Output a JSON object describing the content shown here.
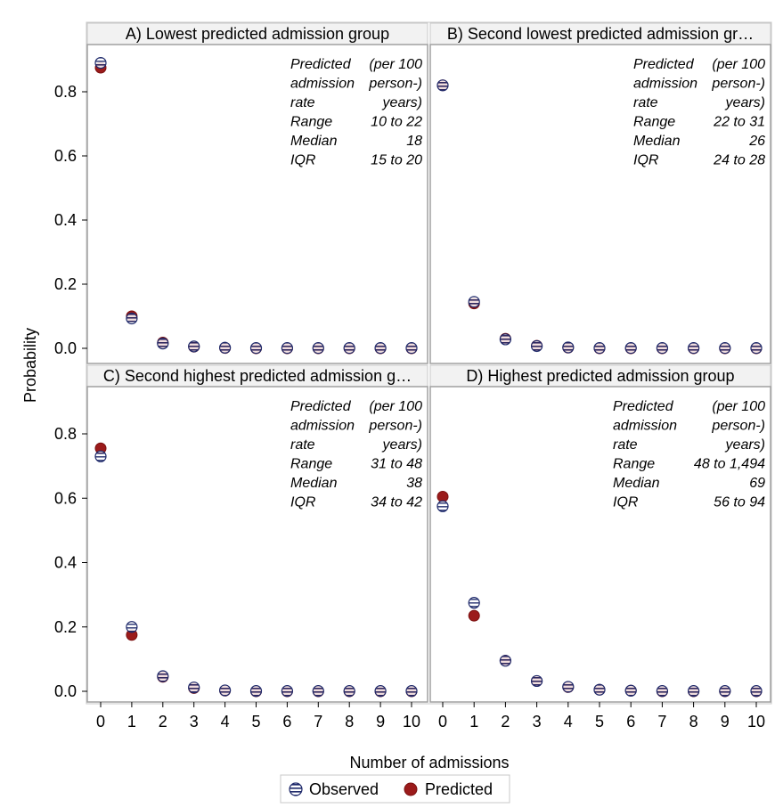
{
  "chart_data": {
    "type": "scatter",
    "xlabel": "Number of admissions",
    "ylabel": "Probability",
    "x_ticks": [
      "0",
      "1",
      "2",
      "3",
      "4",
      "5",
      "6",
      "7",
      "8",
      "9",
      "10"
    ],
    "y_ticks": [
      "0.0",
      "0.2",
      "0.4",
      "0.6",
      "0.8"
    ],
    "xlim": [
      0,
      10
    ],
    "ylim": [
      0,
      0.9
    ],
    "legend": [
      {
        "name": "Observed",
        "marker": "open-circle-striped",
        "color": "#1f2a6b"
      },
      {
        "name": "Predicted",
        "marker": "filled-circle",
        "color": "#9b1b1b"
      }
    ],
    "legend_position": "bottom-center",
    "panels": [
      {
        "title": "A) Lowest predicted admission group",
        "stats": {
          "header": [
            "Predicted",
            "(per 100",
            "admission",
            "person-)",
            "rate",
            "years)"
          ],
          "rows": [
            [
              "Range",
              "10 to 22"
            ],
            [
              "Median",
              "18"
            ],
            [
              "IQR",
              "15 to 20"
            ]
          ]
        },
        "x": [
          0,
          1,
          2,
          3,
          4,
          5,
          6,
          7,
          8,
          9,
          10
        ],
        "observed": [
          0.89,
          0.093,
          0.015,
          0.006,
          0.002,
          0.001,
          0.001,
          0.001,
          0.001,
          0.001,
          0.001
        ],
        "predicted": [
          0.875,
          0.1,
          0.018,
          0.005,
          0.001,
          0.0,
          0.0,
          0.0,
          0.0,
          0.0,
          0.0
        ]
      },
      {
        "title": "B) Second lowest predicted admission gr…",
        "stats": {
          "header": [
            "Predicted",
            "(per 100",
            "admission",
            "person-)",
            "rate",
            "years)"
          ],
          "rows": [
            [
              "Range",
              "22 to 31"
            ],
            [
              "Median",
              "26"
            ],
            [
              "IQR",
              "24 to 28"
            ]
          ]
        },
        "x": [
          0,
          1,
          2,
          3,
          4,
          5,
          6,
          7,
          8,
          9,
          10
        ],
        "observed": [
          0.82,
          0.145,
          0.028,
          0.007,
          0.003,
          0.001,
          0.001,
          0.001,
          0.001,
          0.001,
          0.001
        ],
        "predicted": [
          0.82,
          0.14,
          0.03,
          0.008,
          0.002,
          0.0,
          0.0,
          0.0,
          0.0,
          0.0,
          0.0
        ]
      },
      {
        "title": "C) Second highest predicted admission g…",
        "stats": {
          "header": [
            "Predicted",
            "(per 100",
            "admission",
            "person-)",
            "rate",
            "years)"
          ],
          "rows": [
            [
              "Range",
              "31 to 48"
            ],
            [
              "Median",
              "38"
            ],
            [
              "IQR",
              "34 to 42"
            ]
          ]
        },
        "x": [
          0,
          1,
          2,
          3,
          4,
          5,
          6,
          7,
          8,
          9,
          10
        ],
        "observed": [
          0.73,
          0.2,
          0.047,
          0.012,
          0.003,
          0.001,
          0.001,
          0.001,
          0.001,
          0.001,
          0.001
        ],
        "predicted": [
          0.755,
          0.175,
          0.045,
          0.01,
          0.002,
          0.0,
          0.0,
          0.0,
          0.0,
          0.0,
          0.0
        ]
      },
      {
        "title": "D) Highest predicted admission group",
        "stats": {
          "header": [
            "Predicted",
            "(per 100",
            "admission",
            "person-)",
            "rate",
            "years)"
          ],
          "rows": [
            [
              "Range",
              "48 to 1,494"
            ],
            [
              "Median",
              "69"
            ],
            [
              "IQR",
              "56 to 94"
            ]
          ]
        },
        "x": [
          0,
          1,
          2,
          3,
          4,
          5,
          6,
          7,
          8,
          9,
          10
        ],
        "observed": [
          0.575,
          0.275,
          0.095,
          0.032,
          0.014,
          0.005,
          0.002,
          0.001,
          0.001,
          0.001,
          0.001
        ],
        "predicted": [
          0.605,
          0.235,
          0.095,
          0.032,
          0.013,
          0.005,
          0.002,
          0.0,
          0.0,
          0.0,
          0.0
        ]
      }
    ]
  }
}
